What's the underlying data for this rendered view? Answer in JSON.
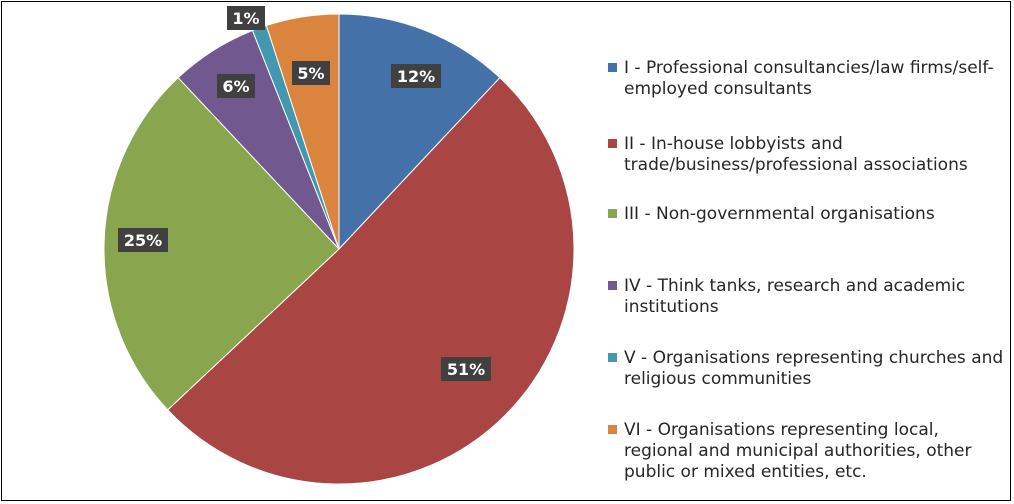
{
  "chart_data": {
    "type": "pie",
    "title": "",
    "legend_position": "right",
    "slices": [
      {
        "label": "I - Professional consultancies/law firms/self-employed consultants",
        "value": 12,
        "value_label": "12%",
        "color": "#4472A8"
      },
      {
        "label": "II - In-house lobbyists and trade/business/professional associations",
        "value": 51,
        "value_label": "51%",
        "color": "#A94644"
      },
      {
        "label": "III - Non-governmental organisations",
        "value": 25,
        "value_label": "25%",
        "color": "#89A54E"
      },
      {
        "label": "IV - Think tanks, research and academic institutions",
        "value": 6,
        "value_label": "6%",
        "color": "#71588F"
      },
      {
        "label": "V - Organisations representing churches and religious communities",
        "value": 1,
        "value_label": "1%",
        "color": "#4198AF"
      },
      {
        "label": "VI - Organisations representing local, regional and municipal authorities, other public or mixed entities, etc.",
        "value": 5,
        "value_label": "5%",
        "color": "#DB843D"
      }
    ]
  }
}
